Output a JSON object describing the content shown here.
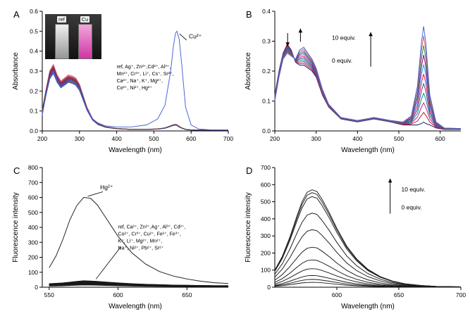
{
  "figure": {
    "background": "#ffffff"
  },
  "chart_data": [
    {
      "id": "A",
      "label": "A",
      "type": "line",
      "xlabel": "Wavelength (nm)",
      "ylabel": "Absorbance",
      "xlim": [
        200,
        700
      ],
      "ylim": [
        0,
        0.6
      ],
      "xticks": [
        200,
        300,
        400,
        500,
        600,
        700
      ],
      "yticks": [
        0,
        0.1,
        0.2,
        0.3,
        0.4,
        0.5,
        0.6
      ],
      "ydec": 1,
      "x": [
        200,
        210,
        220,
        230,
        240,
        250,
        260,
        270,
        280,
        290,
        300,
        310,
        320,
        335,
        350,
        370,
        400,
        440,
        480,
        510,
        530,
        545,
        552,
        558,
        562,
        568,
        575,
        585,
        600,
        620,
        650,
        700
      ],
      "bases": {
        "metals": [
          0.1,
          0.2,
          0.29,
          0.32,
          0.27,
          0.24,
          0.255,
          0.27,
          0.265,
          0.255,
          0.225,
          0.17,
          0.115,
          0.06,
          0.035,
          0.02,
          0.012,
          0.008,
          0.008,
          0.01,
          0.015,
          0.025,
          0.03,
          0.032,
          0.03,
          0.022,
          0.015,
          0.008,
          0.005,
          0.004,
          0.004,
          0.004
        ]
      },
      "series": [
        {
          "name": "ref",
          "base": "metals",
          "scale": 1.02,
          "color": "#c03030"
        },
        {
          "name": "Ag⁺",
          "base": "metals",
          "scale": 0.97,
          "color": "#e07820"
        },
        {
          "name": "Zn²⁺",
          "base": "metals",
          "scale": 1.0,
          "color": "#c02890"
        },
        {
          "name": "Cd²⁺",
          "base": "metals",
          "scale": 0.95,
          "color": "#7030a8"
        },
        {
          "name": "Al³⁺",
          "base": "metals",
          "scale": 0.99,
          "color": "#2858c8"
        },
        {
          "name": "Mn²⁺",
          "base": "metals",
          "scale": 0.93,
          "color": "#1f8a8a"
        },
        {
          "name": "Cr³⁺",
          "base": "metals",
          "scale": 0.96,
          "color": "#4f8c1f"
        },
        {
          "name": "Li⁺",
          "base": "metals",
          "scale": 1.04,
          "color": "#c85080"
        },
        {
          "name": "Cs⁺",
          "base": "metals",
          "scale": 0.92,
          "color": "#9a6a1f"
        },
        {
          "name": "Sr²⁺",
          "base": "metals",
          "scale": 0.98,
          "color": "#d84040"
        },
        {
          "name": "Ca²⁺",
          "base": "metals",
          "scale": 0.94,
          "color": "#2f2fa0"
        },
        {
          "name": "Na⁺",
          "base": "metals",
          "scale": 1.01,
          "color": "#c23a6a"
        },
        {
          "name": "K⁺",
          "base": "metals",
          "scale": 0.9,
          "color": "#1f9050"
        },
        {
          "name": "Mg²⁺",
          "base": "metals",
          "scale": 0.97,
          "color": "#8a2020"
        },
        {
          "name": "Co²⁺",
          "base": "metals",
          "scale": 0.91,
          "color": "#4050c8"
        },
        {
          "name": "Ni²⁺",
          "base": "metals",
          "scale": 0.95,
          "color": "#9a30c8"
        },
        {
          "name": "Hg²⁺",
          "base": "metals",
          "scale": 0.99,
          "color": "#444444"
        },
        {
          "name": "Cu²⁺",
          "color": "#4061d6",
          "y": [
            0.08,
            0.18,
            0.26,
            0.3,
            0.25,
            0.22,
            0.235,
            0.25,
            0.25,
            0.24,
            0.21,
            0.16,
            0.11,
            0.06,
            0.04,
            0.025,
            0.02,
            0.02,
            0.03,
            0.06,
            0.13,
            0.3,
            0.42,
            0.49,
            0.5,
            0.46,
            0.33,
            0.12,
            0.03,
            0.01,
            0.006,
            0.005
          ]
        }
      ],
      "annotations": [
        {
          "text": "Cu²⁺",
          "x": 594,
          "y": 0.465,
          "size": 8.5
        },
        {
          "line": [
            588,
            0.455,
            569,
            0.487
          ]
        },
        {
          "lines": [
            "ref, Ag⁺, Zn²⁺,Cd²⁺, Al³⁺,",
            "Mn²⁺, Cr³⁺, Li⁺, Cs⁺, Sr²⁺,",
            "Ca²⁺, Na⁺, K⁺, Mg²⁺,",
            "Co²⁺, Ni²⁺, Hg²⁺"
          ],
          "x": 400,
          "y": 0.315,
          "size": 7,
          "lh": 10
        }
      ],
      "inset": {
        "labels": [
          "ref",
          "Cu"
        ]
      }
    },
    {
      "id": "B",
      "label": "B",
      "type": "line",
      "xlabel": "Wavelength (nm)",
      "ylabel": "Absorbance",
      "xlim": [
        200,
        650
      ],
      "ylim": [
        0,
        0.4
      ],
      "xticks": [
        200,
        300,
        400,
        500,
        600
      ],
      "yticks": [
        0,
        0.1,
        0.2,
        0.3,
        0.4
      ],
      "ydec": 1,
      "x": [
        200,
        210,
        220,
        230,
        240,
        250,
        260,
        270,
        280,
        290,
        300,
        315,
        330,
        360,
        400,
        440,
        480,
        510,
        530,
        545,
        555,
        560,
        565,
        575,
        590,
        610,
        650
      ],
      "bases": {
        "b0": [
          0.12,
          0.2,
          0.26,
          0.29,
          0.27,
          0.23,
          0.22,
          0.22,
          0.21,
          0.2,
          0.18,
          0.12,
          0.08,
          0.04,
          0.03,
          0.04,
          0.03,
          0.02,
          0.02,
          0.02,
          0.025,
          0.03,
          0.025,
          0.02,
          0.01,
          0.005,
          0.005
        ],
        "b10": [
          0.1,
          0.18,
          0.24,
          0.26,
          0.25,
          0.24,
          0.27,
          0.28,
          0.26,
          0.24,
          0.21,
          0.14,
          0.09,
          0.045,
          0.035,
          0.045,
          0.035,
          0.03,
          0.05,
          0.15,
          0.3,
          0.35,
          0.3,
          0.12,
          0.03,
          0.01,
          0.008
        ]
      },
      "series": [
        {
          "name": "titration",
          "mix": [
            "b0",
            "b10"
          ],
          "ts": [
            0,
            0.1,
            0.2,
            0.3,
            0.4,
            0.5,
            0.6,
            0.7,
            0.8,
            0.9,
            1.0
          ],
          "colors": [
            "#191970",
            "#b22222",
            "#c71585",
            "#008b8b",
            "#483d8b",
            "#dc143c",
            "#1e90ff",
            "#8b008b",
            "#2e8b57",
            "#cd5c5c",
            "#4061d6"
          ]
        }
      ],
      "annotations": [
        {
          "arrow": [
            231,
            0.327,
            231,
            0.283
          ]
        },
        {
          "arrow": [
            262,
            0.298,
            262,
            0.342
          ]
        },
        {
          "text": "10 equiv.",
          "x": 338,
          "y": 0.305,
          "size": 8.5
        },
        {
          "text": "0 equiv.",
          "x": 338,
          "y": 0.228,
          "size": 8.5
        },
        {
          "arrow": [
            432,
            0.215,
            432,
            0.33
          ]
        }
      ]
    },
    {
      "id": "C",
      "label": "C",
      "type": "line",
      "xlabel": "Wavelength (nm)",
      "ylabel": "Fluorescence intensity",
      "xlim": [
        545,
        680
      ],
      "ylim": [
        0,
        800
      ],
      "xticks": [
        550,
        600,
        650
      ],
      "yticks": [
        0,
        100,
        200,
        300,
        400,
        500,
        600,
        700,
        800
      ],
      "ydec": 0,
      "x": [
        550,
        555,
        560,
        565,
        570,
        575,
        580,
        585,
        590,
        600,
        610,
        620,
        630,
        640,
        650,
        660,
        670,
        680
      ],
      "bases": {
        "flat": [
          18,
          20,
          22,
          26,
          30,
          33,
          32,
          30,
          27,
          22,
          18,
          15,
          13,
          11,
          10,
          9,
          8,
          8
        ]
      },
      "series": [
        {
          "name": "other-metals",
          "base": "flat",
          "color": "#1a1a1a",
          "scales": [
            1.3,
            1.25,
            1.2,
            1.15,
            1.1,
            1.05,
            1.0,
            0.95,
            0.9,
            0.85,
            0.8,
            0.75,
            0.7,
            0.65,
            0.6,
            0.55,
            0.5,
            0.45
          ]
        },
        {
          "name": "Hg²⁺",
          "color": "#1a1a1a",
          "y": [
            130,
            210,
            320,
            450,
            545,
            600,
            595,
            550,
            480,
            340,
            230,
            155,
            105,
            75,
            55,
            40,
            30,
            25
          ]
        }
      ],
      "annotations": [
        {
          "text": "Hg²⁺",
          "x": 587,
          "y": 655,
          "size": 8.5
        },
        {
          "line": [
            589,
            638,
            578,
            608
          ]
        },
        {
          "lines": [
            "ref, Ca²⁺, Zn²⁺,Ag⁺, Al³⁺, Cd²⁺,",
            "Co²⁺, Cr³⁺, Cu²⁺, Fe²⁺, Fe³⁺,",
            "K⁺, Li⁺, Mg²⁺, Mn²⁺,",
            "Na⁺, Ni²⁺, Pb²⁺, Sr²⁺"
          ],
          "x": 600,
          "y": 392,
          "size": 7,
          "lh": 10
        },
        {
          "line": [
            602,
            270,
            584,
            55
          ]
        }
      ]
    },
    {
      "id": "D",
      "label": "D",
      "type": "line",
      "xlabel": "Wavelength (nm)",
      "ylabel": "Fluorescence intensity",
      "xlim": [
        550,
        700
      ],
      "ylim": [
        0,
        700
      ],
      "xticks": [
        600,
        650,
        700
      ],
      "yticks": [
        0,
        100,
        200,
        300,
        400,
        500,
        600,
        700
      ],
      "ydec": 0,
      "x": [
        550,
        556,
        562,
        568,
        572,
        576,
        580,
        584,
        588,
        594,
        600,
        608,
        616,
        625,
        635,
        645,
        655,
        668,
        680,
        700
      ],
      "bases": {
        "dpk": [
          100,
          180,
          290,
          420,
          500,
          555,
          570,
          560,
          515,
          435,
          345,
          240,
          165,
          105,
          62,
          36,
          20,
          10,
          5,
          2
        ]
      },
      "series": [
        {
          "name": "titration",
          "base": "dpk",
          "color": "#1a1a1a",
          "scales": [
            1.0,
            0.97,
            0.93,
            0.76,
            0.59,
            0.41,
            0.28,
            0.19,
            0.12,
            0.08,
            0.05
          ]
        }
      ],
      "annotations": [
        {
          "arrow": [
            643,
            430,
            643,
            635
          ]
        },
        {
          "text": "10 equiv.",
          "x": 652,
          "y": 560,
          "size": 8.5
        },
        {
          "text": "0 equiv.",
          "x": 652,
          "y": 455,
          "size": 8.5
        }
      ]
    }
  ]
}
